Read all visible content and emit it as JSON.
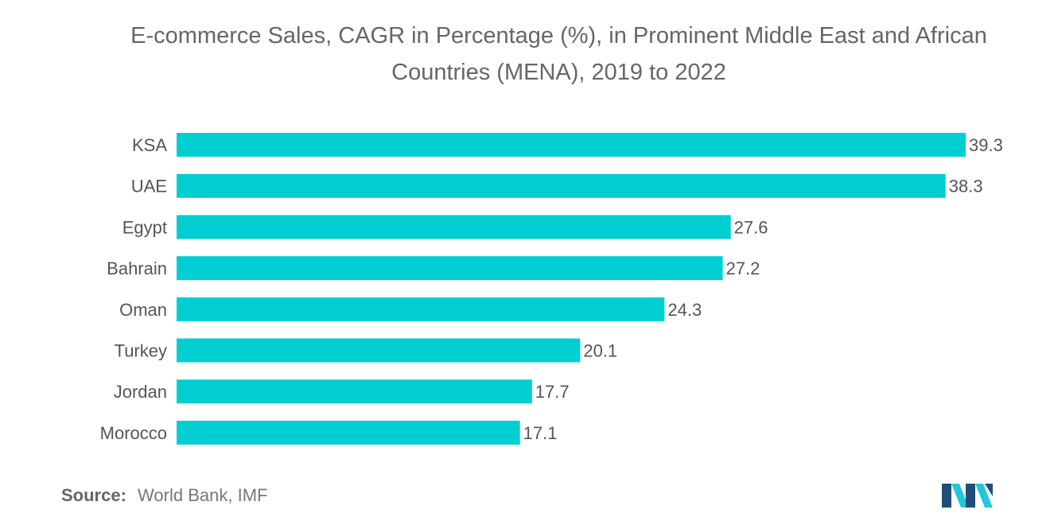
{
  "title_lines": [
    "E-commerce Sales, CAGR in Percentage (%), in Prominent Middle East and African",
    "Countries (MENA), 2019 to 2022"
  ],
  "source": {
    "label": "Source:",
    "text": "World Bank, IMF"
  },
  "colors": {
    "bar": "#00CED1",
    "text": "#555555",
    "title": "#666666",
    "logo_dark": "#1F4E79",
    "logo_light": "#26C6DA"
  },
  "chart_data": {
    "type": "bar",
    "orientation": "horizontal",
    "title": "E-commerce Sales, CAGR in Percentage (%), in Prominent Middle East and African Countries (MENA), 2019 to 2022",
    "categories": [
      "KSA",
      "UAE",
      "Egypt",
      "Bahrain",
      "Oman",
      "Turkey",
      "Jordan",
      "Morocco"
    ],
    "values": [
      39.3,
      38.3,
      27.6,
      27.2,
      24.3,
      20.1,
      17.7,
      17.1
    ],
    "xlabel": "",
    "ylabel": "",
    "xlim": [
      0,
      39.3
    ],
    "grid": false,
    "legend": "none"
  }
}
